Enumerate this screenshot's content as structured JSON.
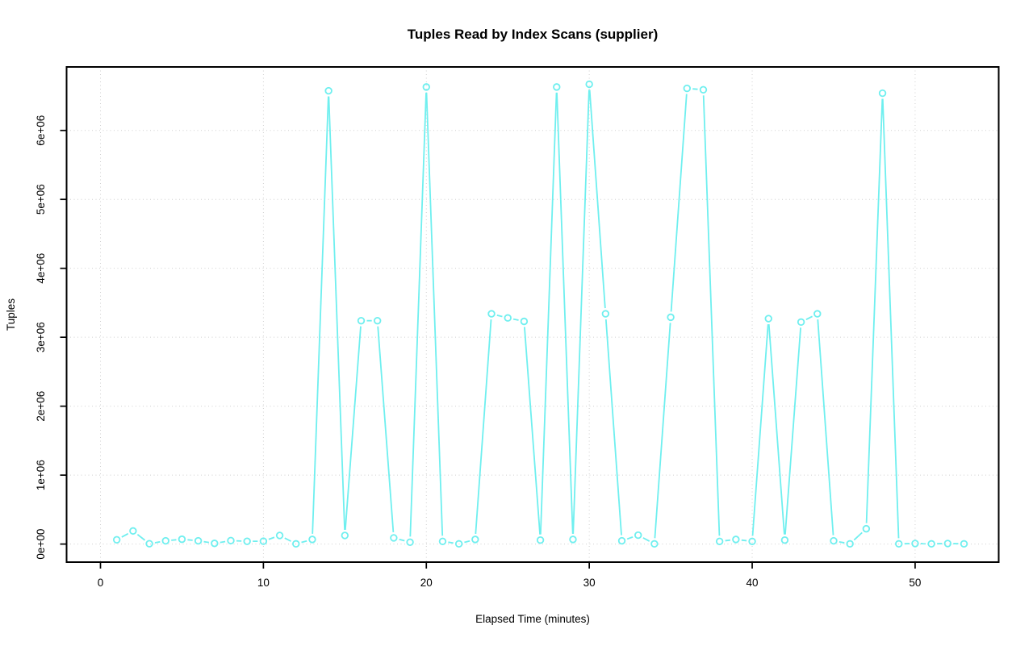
{
  "chart_data": {
    "type": "line",
    "title": "Tuples Read by Index Scans (supplier)",
    "xlabel": "Elapsed Time (minutes)",
    "ylabel": "Tuples",
    "legend": "none",
    "grid": "dotted",
    "marker": "open-circle",
    "x_ticks": [
      0,
      10,
      20,
      30,
      40,
      50
    ],
    "y_tick_values": [
      0,
      1000000,
      2000000,
      3000000,
      4000000,
      5000000,
      6000000
    ],
    "y_tick_labels": [
      "0e+00",
      "1e+06",
      "2e+06",
      "3e+06",
      "4e+06",
      "5e+06",
      "6e+06"
    ],
    "xlim": [
      -2.08,
      55.13
    ],
    "ylim": [
      -262000,
      6921000
    ],
    "x": [
      1,
      2,
      3,
      4,
      5,
      6,
      7,
      8,
      9,
      10,
      11,
      12,
      13,
      14,
      15,
      16,
      17,
      18,
      19,
      20,
      21,
      22,
      23,
      24,
      25,
      26,
      27,
      28,
      29,
      30,
      31,
      32,
      33,
      34,
      35,
      36,
      37,
      38,
      39,
      40,
      41,
      42,
      43,
      44,
      45,
      46,
      47,
      48,
      49,
      50,
      51,
      52,
      53
    ],
    "values": [
      62000,
      190000,
      5000,
      47000,
      70000,
      47000,
      10000,
      50000,
      40000,
      41000,
      125000,
      3000,
      67000,
      6575000,
      125000,
      3240000,
      3240000,
      90000,
      27000,
      6630000,
      39000,
      3000,
      67000,
      3340000,
      3280000,
      3230000,
      58000,
      6630000,
      67000,
      6670000,
      3340000,
      47000,
      129000,
      3000,
      3290000,
      6610000,
      6590000,
      39000,
      67000,
      39000,
      3270000,
      58000,
      3220000,
      3340000,
      47000,
      3000,
      222000,
      6540000,
      3000,
      8000,
      3000,
      8000,
      3000
    ]
  },
  "colors": {
    "series": "#6FEFEF",
    "grid": "#D0D0D0",
    "axis": "#000000",
    "background": "#FFFFFF"
  }
}
